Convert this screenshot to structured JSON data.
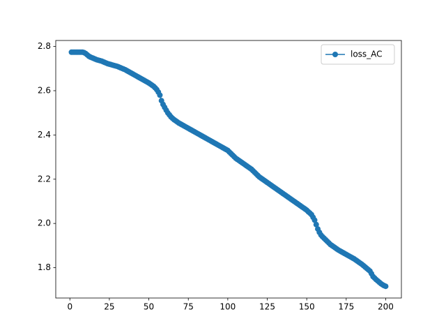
{
  "chart_data": {
    "type": "line",
    "x": [
      1,
      2,
      3,
      4,
      5,
      6,
      7,
      8,
      9,
      10,
      11,
      12,
      13,
      14,
      15,
      16,
      17,
      18,
      19,
      20,
      21,
      22,
      23,
      24,
      25,
      26,
      27,
      28,
      29,
      30,
      31,
      32,
      33,
      34,
      35,
      36,
      37,
      38,
      39,
      40,
      41,
      42,
      43,
      44,
      45,
      46,
      47,
      48,
      49,
      50,
      51,
      52,
      53,
      54,
      55,
      56,
      57,
      58,
      59,
      60,
      61,
      62,
      63,
      64,
      65,
      66,
      67,
      68,
      69,
      70,
      71,
      72,
      73,
      74,
      75,
      76,
      77,
      78,
      79,
      80,
      81,
      82,
      83,
      84,
      85,
      86,
      87,
      88,
      89,
      90,
      91,
      92,
      93,
      94,
      95,
      96,
      97,
      98,
      99,
      100,
      101,
      102,
      103,
      104,
      105,
      106,
      107,
      108,
      109,
      110,
      111,
      112,
      113,
      114,
      115,
      116,
      117,
      118,
      119,
      120,
      121,
      122,
      123,
      124,
      125,
      126,
      127,
      128,
      129,
      130,
      131,
      132,
      133,
      134,
      135,
      136,
      137,
      138,
      139,
      140,
      141,
      142,
      143,
      144,
      145,
      146,
      147,
      148,
      149,
      150,
      151,
      152,
      153,
      154,
      155,
      156,
      157,
      158,
      159,
      160,
      161,
      162,
      163,
      164,
      165,
      166,
      167,
      168,
      169,
      170,
      171,
      172,
      173,
      174,
      175,
      176,
      177,
      178,
      179,
      180,
      181,
      182,
      183,
      184,
      185,
      186,
      187,
      188,
      189,
      190,
      191,
      192,
      193,
      194,
      195,
      196,
      197,
      198,
      199,
      200
    ],
    "series": [
      {
        "name": "loss_AC",
        "color": "#1f77b4",
        "values": [
          2.774,
          2.774,
          2.774,
          2.774,
          2.774,
          2.774,
          2.774,
          2.774,
          2.772,
          2.768,
          2.762,
          2.756,
          2.752,
          2.749,
          2.746,
          2.743,
          2.74,
          2.738,
          2.736,
          2.734,
          2.731,
          2.728,
          2.725,
          2.722,
          2.72,
          2.718,
          2.716,
          2.714,
          2.712,
          2.71,
          2.707,
          2.704,
          2.701,
          2.698,
          2.695,
          2.691,
          2.687,
          2.683,
          2.679,
          2.675,
          2.671,
          2.667,
          2.663,
          2.659,
          2.655,
          2.651,
          2.647,
          2.643,
          2.639,
          2.635,
          2.63,
          2.625,
          2.62,
          2.613,
          2.605,
          2.594,
          2.58,
          2.555,
          2.538,
          2.525,
          2.512,
          2.5,
          2.491,
          2.482,
          2.475,
          2.469,
          2.464,
          2.459,
          2.454,
          2.45,
          2.446,
          2.442,
          2.438,
          2.434,
          2.43,
          2.426,
          2.422,
          2.418,
          2.414,
          2.41,
          2.406,
          2.402,
          2.398,
          2.394,
          2.39,
          2.386,
          2.382,
          2.378,
          2.374,
          2.37,
          2.366,
          2.362,
          2.358,
          2.354,
          2.35,
          2.346,
          2.342,
          2.338,
          2.334,
          2.33,
          2.323,
          2.316,
          2.309,
          2.302,
          2.295,
          2.29,
          2.285,
          2.28,
          2.275,
          2.27,
          2.265,
          2.26,
          2.255,
          2.25,
          2.245,
          2.238,
          2.231,
          2.224,
          2.217,
          2.21,
          2.205,
          2.2,
          2.195,
          2.19,
          2.185,
          2.18,
          2.175,
          2.17,
          2.165,
          2.16,
          2.155,
          2.15,
          2.145,
          2.14,
          2.135,
          2.13,
          2.125,
          2.12,
          2.115,
          2.11,
          2.105,
          2.1,
          2.095,
          2.09,
          2.085,
          2.08,
          2.075,
          2.07,
          2.065,
          2.06,
          2.053,
          2.047,
          2.04,
          2.028,
          2.015,
          1.995,
          1.975,
          1.96,
          1.948,
          1.94,
          1.933,
          1.926,
          1.919,
          1.912,
          1.905,
          1.9,
          1.895,
          1.89,
          1.885,
          1.88,
          1.876,
          1.872,
          1.868,
          1.864,
          1.86,
          1.856,
          1.852,
          1.848,
          1.844,
          1.84,
          1.835,
          1.83,
          1.825,
          1.82,
          1.815,
          1.809,
          1.803,
          1.797,
          1.791,
          1.785,
          1.773,
          1.76,
          1.753,
          1.746,
          1.74,
          1.734,
          1.728,
          1.723,
          1.719,
          1.716
        ]
      }
    ],
    "xlim": [
      -8.95,
      209.95
    ],
    "xticks": [
      0,
      25,
      50,
      75,
      100,
      125,
      150,
      175,
      200
    ],
    "ylim": [
      1.663,
      2.827
    ],
    "yticks": [
      1.8,
      {
        "value": 2,
        "label": "2.0"
      },
      2.2,
      2.4,
      2.6,
      2.8
    ],
    "legend": "upper right",
    "marker": true
  }
}
